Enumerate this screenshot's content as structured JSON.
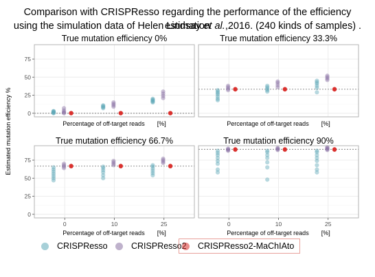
{
  "title_line1": "Comparison with CRISPResso regarding the performance of the efficiency estimation",
  "title_line2_a": "using the simulation data of Helen Lindsay ",
  "title_line2_em": "et al.",
  "title_line2_b": ",2016. (240 kinds of samples) .",
  "colors": {
    "CRISPResso": "#5fa9b8",
    "CRISPResso2": "#8a72a3",
    "CRISPResso2-MaChIAto": "#d9302c",
    "panel_border": "#b3b3b3",
    "grid": "#ececec",
    "reference_line": "#7f7f7f",
    "legend_highlight_border": "#e8a09a"
  },
  "legend": {
    "items": [
      "CRISPResso",
      "CRISPResso2",
      "CRISPResso2-MaChIAto"
    ],
    "highlighted": "CRISPResso2-MaChIAto"
  },
  "chart_data": {
    "type": "scatter",
    "facet_layout": "2x2",
    "ylabel": "Estimated mutation efficiency %",
    "xlabel": "Percentage of off-target reads  [%]",
    "x_categories": [
      "0",
      "10",
      "25"
    ],
    "yticks": [
      0,
      25,
      50,
      75
    ],
    "ylim": [
      -5,
      95
    ],
    "grid": true,
    "legend_position": "bottom",
    "panels": [
      {
        "title": "True mutation efficiency 0%",
        "reference_line": 0,
        "show_x_axis_title": true,
        "show_x_tick_labels": false,
        "show_y_axis": true,
        "series": [
          {
            "name": "CRISPResso",
            "points": {
              "0": [
                0,
                0.5,
                1,
                1.5,
                2,
                2.5,
                3
              ],
              "10": [
                7,
                8,
                9,
                10,
                11
              ],
              "25": [
                15,
                16,
                17,
                18,
                19,
                20
              ]
            }
          },
          {
            "name": "CRISPResso2",
            "points": {
              "0": [
                0,
                1,
                2,
                4,
                7
              ],
              "10": [
                9,
                11,
                13,
                15
              ],
              "25": [
                21,
                24,
                27,
                30
              ]
            }
          },
          {
            "name": "CRISPResso2-MaChIAto",
            "points": {
              "0": [
                0,
                0.3
              ],
              "10": [
                0,
                0.3
              ],
              "25": [
                0,
                0.3
              ]
            }
          }
        ]
      },
      {
        "title": "True mutation efficiency 33.3%",
        "reference_line": 33.3,
        "show_x_axis_title": true,
        "show_x_tick_labels": false,
        "show_y_axis": false,
        "series": [
          {
            "name": "CRISPResso",
            "points": {
              "0": [
                18,
                20,
                23,
                26,
                28,
                30,
                32
              ],
              "10": [
                30,
                32,
                34,
                36,
                38
              ],
              "25": [
                29,
                35,
                38,
                41,
                43,
                45
              ]
            }
          },
          {
            "name": "CRISPResso2",
            "points": {
              "0": [
                32,
                34,
                36,
                38
              ],
              "10": [
                36,
                39,
                42,
                44
              ],
              "25": [
                46,
                48,
                50,
                52
              ]
            }
          },
          {
            "name": "CRISPResso2-MaChIAto",
            "points": {
              "0": [
                33,
                33.5
              ],
              "10": [
                33,
                33.5
              ],
              "25": [
                33,
                33.5
              ]
            }
          }
        ]
      },
      {
        "title": "True mutation efficiency 66.7%",
        "reference_line": 66.7,
        "show_x_axis_title": true,
        "show_x_tick_labels": true,
        "show_y_axis": true,
        "series": [
          {
            "name": "CRISPResso",
            "points": {
              "0": [
                47,
                50,
                53,
                56,
                59,
                62,
                65
              ],
              "10": [
                50,
                54,
                58,
                61,
                64,
                66
              ],
              "25": [
                54,
                57,
                60,
                63,
                66,
                68
              ]
            }
          },
          {
            "name": "CRISPResso2",
            "points": {
              "0": [
                64,
                66,
                68,
                70
              ],
              "10": [
                68,
                70,
                72,
                74
              ],
              "25": [
                71,
                73,
                75,
                77
              ]
            }
          },
          {
            "name": "CRISPResso2-MaChIAto",
            "points": {
              "0": [
                66.5,
                67
              ],
              "10": [
                66.5,
                67
              ],
              "25": [
                66.5,
                67
              ]
            }
          }
        ]
      },
      {
        "title": "True mutation efficiency 90%",
        "reference_line": 90,
        "show_x_axis_title": true,
        "show_x_tick_labels": true,
        "show_y_axis": false,
        "series": [
          {
            "name": "CRISPResso",
            "points": {
              "0": [
                58,
                62,
                70,
                74,
                78,
                82,
                85,
                88
              ],
              "10": [
                48,
                65,
                72,
                78,
                82,
                86,
                88
              ],
              "25": [
                58,
                62,
                68,
                74,
                78,
                82,
                86,
                88
              ]
            }
          },
          {
            "name": "CRISPResso2",
            "points": {
              "0": [
                88,
                89,
                90,
                91
              ],
              "10": [
                89,
                90,
                91,
                92
              ],
              "25": [
                89,
                90,
                91,
                92,
                93
              ]
            }
          },
          {
            "name": "CRISPResso2-MaChIAto",
            "points": {
              "0": [
                89.5,
                90
              ],
              "10": [
                89.5,
                90
              ],
              "25": [
                89.5,
                90
              ]
            }
          }
        ]
      }
    ]
  }
}
